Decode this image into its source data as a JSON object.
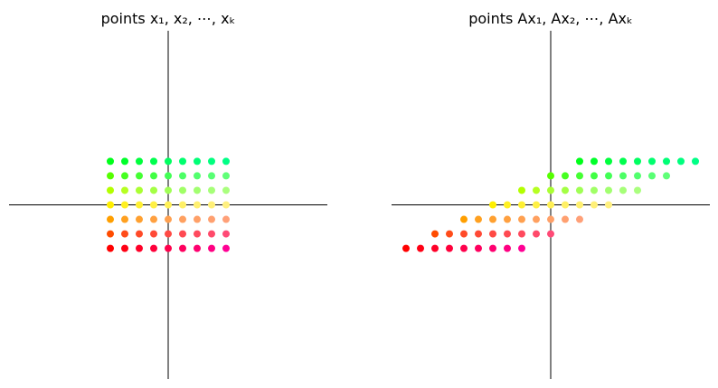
{
  "chart_data": [
    {
      "type": "scatter",
      "title": "points x₁, x₂, ⋯, xₖ",
      "xlim": [
        -11,
        11
      ],
      "ylim": [
        -12,
        12
      ],
      "grid": false,
      "legend": "none",
      "x": [
        -4,
        -3,
        -2,
        -1,
        0,
        1,
        2,
        3,
        4
      ],
      "rows": [
        {
          "y": 3,
          "colors": [
            "#00ff1a",
            "#00ff2a",
            "#00ff3c",
            "#00ff4e",
            "#00ff60",
            "#00ff6e",
            "#00ff76",
            "#00ff7e",
            "#00ff86"
          ]
        },
        {
          "y": 2,
          "colors": [
            "#55ff00",
            "#47ff22",
            "#44ff33",
            "#41ff44",
            "#42ff55",
            "#4cff66",
            "#52ff6e",
            "#58ff74",
            "#60ff78"
          ]
        },
        {
          "y": 1,
          "colors": [
            "#b3ff00",
            "#b6ff22",
            "#aaff33",
            "#a4ff44",
            "#a0ff55",
            "#a0ff66",
            "#a2ff70",
            "#a6ff78",
            "#aaff7e"
          ]
        },
        {
          "y": 0,
          "colors": [
            "#ffef00",
            "#fff022",
            "#fff033",
            "#fff044",
            "#fff055",
            "#fff066",
            "#fff070",
            "#fff078",
            "#fff080"
          ]
        },
        {
          "y": -1,
          "colors": [
            "#ff9f00",
            "#ffa020",
            "#ffa030",
            "#ffa040",
            "#ffa050",
            "#ffa060",
            "#ffa068",
            "#ffa070",
            "#ffa078"
          ]
        },
        {
          "y": -2,
          "colors": [
            "#ff4c00",
            "#ff4c1a",
            "#ff4a28",
            "#ff4a36",
            "#ff4a44",
            "#ff4a52",
            "#ff4a5e",
            "#ff4a6a",
            "#ff4a76"
          ]
        },
        {
          "y": -3,
          "colors": [
            "#ff0000",
            "#ff0014",
            "#ff0028",
            "#ff003a",
            "#ff004c",
            "#ff005e",
            "#ff0070",
            "#ff0082",
            "#ff0094"
          ]
        }
      ]
    },
    {
      "type": "scatter",
      "title": "points Ax₁, Ax₂, ⋯, Axₖ",
      "xlim": [
        -11,
        11
      ],
      "ylim": [
        -12,
        12
      ],
      "grid": false,
      "legend": "none",
      "transform": {
        "shear_x_per_y": 2
      },
      "x": [
        -4,
        -3,
        -2,
        -1,
        0,
        1,
        2,
        3,
        4
      ],
      "rows": [
        {
          "y": 3,
          "colors": [
            "#00ff1a",
            "#00ff2a",
            "#00ff3c",
            "#00ff4e",
            "#00ff60",
            "#00ff6e",
            "#00ff76",
            "#00ff7e",
            "#00ff86"
          ]
        },
        {
          "y": 2,
          "colors": [
            "#55ff00",
            "#47ff22",
            "#44ff33",
            "#41ff44",
            "#42ff55",
            "#4cff66",
            "#52ff6e",
            "#58ff74",
            "#60ff78"
          ]
        },
        {
          "y": 1,
          "colors": [
            "#b3ff00",
            "#b6ff22",
            "#aaff33",
            "#a4ff44",
            "#a0ff55",
            "#a0ff66",
            "#a2ff70",
            "#a6ff78",
            "#aaff7e"
          ]
        },
        {
          "y": 0,
          "colors": [
            "#ffef00",
            "#fff022",
            "#fff033",
            "#fff044",
            "#fff055",
            "#fff066",
            "#fff070",
            "#fff078",
            "#fff080"
          ]
        },
        {
          "y": -1,
          "colors": [
            "#ff9f00",
            "#ffa020",
            "#ffa030",
            "#ffa040",
            "#ffa050",
            "#ffa060",
            "#ffa068",
            "#ffa070",
            "#ffa078"
          ]
        },
        {
          "y": -2,
          "colors": [
            "#ff4c00",
            "#ff4c1a",
            "#ff4a28",
            "#ff4a36",
            "#ff4a44",
            "#ff4a52",
            "#ff4a5e",
            "#ff4a6a",
            "#ff4a76"
          ]
        },
        {
          "y": -3,
          "colors": [
            "#ff0000",
            "#ff0014",
            "#ff0028",
            "#ff003a",
            "#ff004c",
            "#ff005e",
            "#ff0070",
            "#ff0082",
            "#ff0094"
          ]
        }
      ]
    }
  ]
}
